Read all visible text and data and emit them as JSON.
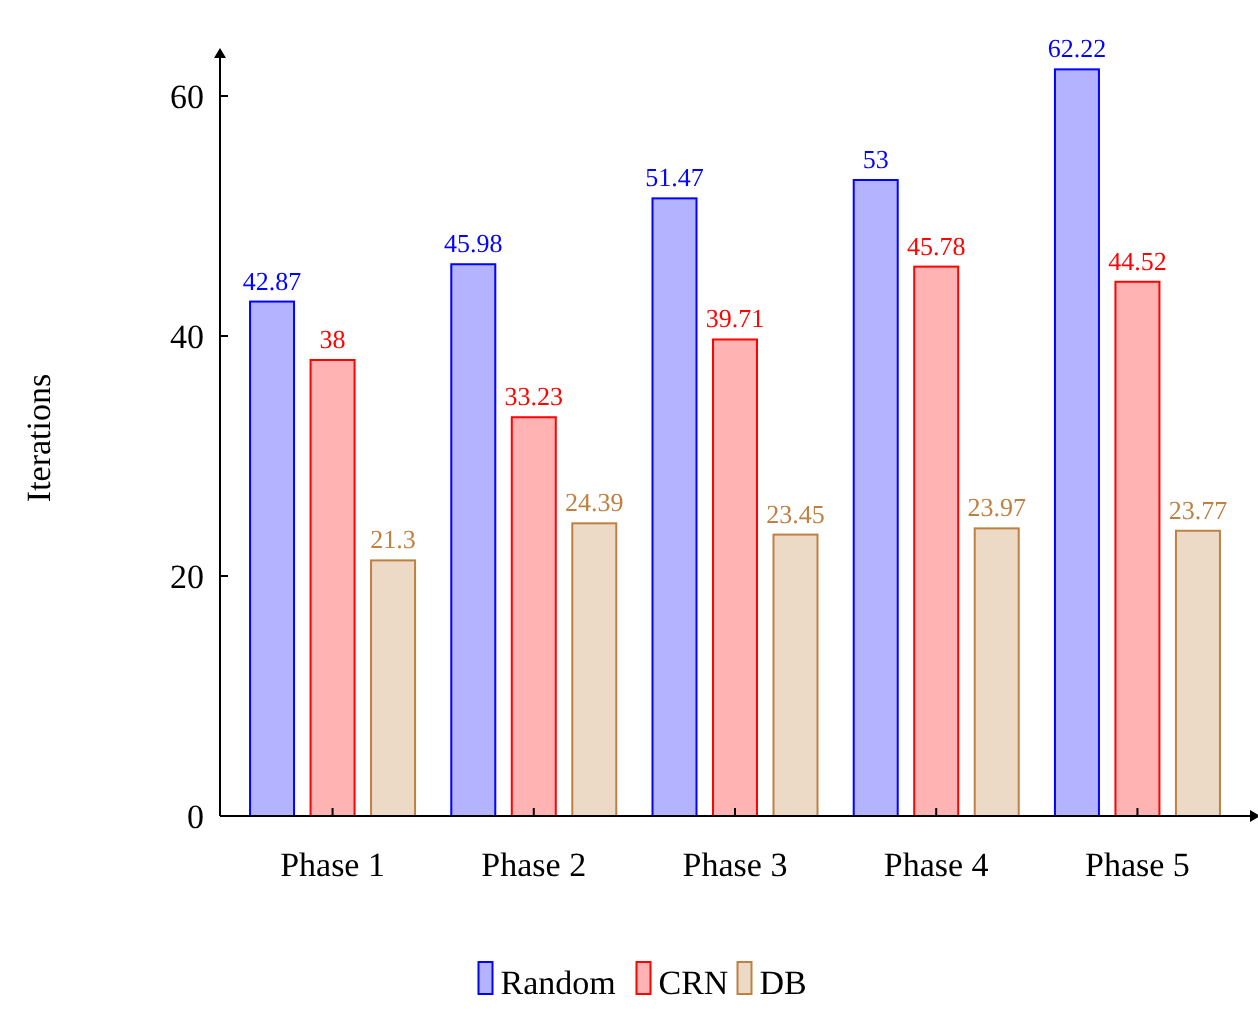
{
  "chart_data": {
    "type": "bar",
    "ylabel": "Iterations",
    "categories": [
      "Phase 1",
      "Phase 2",
      "Phase 3",
      "Phase 4",
      "Phase 5"
    ],
    "series": [
      {
        "name": "Random",
        "color": "#b3b3ff",
        "values": [
          42.87,
          45.98,
          51.47,
          53,
          62.22
        ]
      },
      {
        "name": "CRN",
        "color": "#ffb3b3",
        "values": [
          38,
          33.23,
          39.71,
          45.78,
          44.52
        ]
      },
      {
        "name": "DB",
        "color": "#ecd9c6",
        "values": [
          21.3,
          24.39,
          23.45,
          23.97,
          23.77
        ]
      }
    ],
    "ylim": [
      0,
      63
    ],
    "yticks": [
      0,
      20,
      40,
      60
    ],
    "data_labels": true,
    "legend": "bottom",
    "grid": false
  }
}
